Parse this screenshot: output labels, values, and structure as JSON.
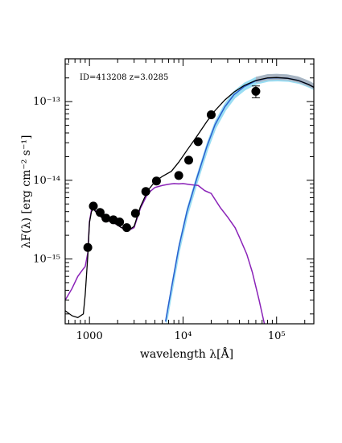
{
  "chart_data": {
    "type": "scatter",
    "title": "",
    "annotation": "ID=413208 z=3.0285",
    "xlabel": "wavelength λ[Å]",
    "ylabel": "λF(λ) [erg cm⁻² s⁻¹]",
    "x_scale": "log",
    "y_scale": "log",
    "xlim": [
      550,
      250000
    ],
    "ylim": [
      1.5e-16,
      3.5e-13
    ],
    "grid": false,
    "legend": "none",
    "x_ticks": [
      {
        "value": 1000,
        "label": "1000"
      },
      {
        "value": 10000,
        "label": "10⁴"
      },
      {
        "value": 100000,
        "label": "10⁵"
      }
    ],
    "y_ticks": [
      {
        "value": 1e-15,
        "label": "10⁻¹⁵"
      },
      {
        "value": 1e-14,
        "label": "10⁻¹⁴"
      },
      {
        "value": 1e-13,
        "label": "10⁻¹³"
      }
    ],
    "colors": {
      "points": "#000000",
      "total_model": "#000000",
      "stellar_model": "#8a22b8",
      "dust_model": "#2a5fd0",
      "dust_band": "#7fd4f0",
      "dust_band_far": "#a8b4c2"
    },
    "points": [
      {
        "x": 960,
        "y": 1.4e-15
      },
      {
        "x": 1100,
        "y": 4.7e-15
      },
      {
        "x": 1300,
        "y": 3.9e-15
      },
      {
        "x": 1500,
        "y": 3.3e-15
      },
      {
        "x": 1800,
        "y": 3.15e-15
      },
      {
        "x": 2100,
        "y": 2.95e-15
      },
      {
        "x": 2500,
        "y": 2.5e-15
      },
      {
        "x": 3100,
        "y": 3.8e-15
      },
      {
        "x": 4000,
        "y": 7.2e-15
      },
      {
        "x": 5200,
        "y": 9.8e-15
      },
      {
        "x": 9000,
        "y": 1.15e-14
      },
      {
        "x": 11500,
        "y": 1.8e-14
      },
      {
        "x": 14500,
        "y": 3.1e-14
      },
      {
        "x": 20000,
        "y": 6.8e-14
      },
      {
        "x": 60000,
        "y": 1.35e-13,
        "err_low": 1.12e-13,
        "err_high": 1.58e-13
      }
    ],
    "series": [
      {
        "key": "total",
        "x": [
          550,
          650,
          750,
          860,
          900,
          960,
          1000,
          1050,
          1100,
          1200,
          1400,
          1600,
          1900,
          2200,
          2600,
          3000,
          3500,
          4200,
          5000,
          6000,
          7500,
          9000,
          11000,
          14000,
          18000,
          22000,
          28000,
          35000,
          45000,
          60000,
          80000,
          100000,
          130000,
          170000,
          220000,
          250000
        ],
        "y": [
          2.2e-16,
          1.9e-16,
          1.8e-16,
          2e-16,
          3.5e-16,
          1.1e-15,
          2.9e-15,
          4e-15,
          4.35e-15,
          3.8e-15,
          3.25e-15,
          3.05e-15,
          2.8e-15,
          2.5e-15,
          2.3e-15,
          2.6e-15,
          4.6e-15,
          7.4e-15,
          9.6e-15,
          1.12e-14,
          1.3e-14,
          1.7e-14,
          2.4e-14,
          3.6e-14,
          5.6e-14,
          7.7e-14,
          1.05e-13,
          1.32e-13,
          1.6e-13,
          1.86e-13,
          2e-13,
          2.02e-13,
          1.98e-13,
          1.86e-13,
          1.65e-13,
          1.52e-13
        ]
      },
      {
        "key": "stellar",
        "x": [
          550,
          650,
          750,
          860,
          900,
          960,
          1000,
          1050,
          1100,
          1200,
          1400,
          1600,
          1900,
          2200,
          2600,
          3000,
          3500,
          4200,
          5000,
          6000,
          7000,
          8000,
          9000,
          10000,
          12000,
          14500,
          17000,
          20000,
          25000,
          30000,
          36000,
          40000,
          48000,
          55000,
          65000,
          75000
        ],
        "y": [
          3e-16,
          4.2e-16,
          6e-16,
          7.5e-16,
          8e-16,
          1.2e-15,
          3e-15,
          4.2e-15,
          4.5e-15,
          3.85e-15,
          3.25e-15,
          3.05e-15,
          2.8e-15,
          2.5e-15,
          2.3e-15,
          2.5e-15,
          4.4e-15,
          6.8e-15,
          8.1e-15,
          8.6e-15,
          8.9e-15,
          9.1e-15,
          9e-15,
          9.1e-15,
          8.8e-15,
          8.6e-15,
          7.4e-15,
          6.8e-15,
          4.5e-15,
          3.4e-15,
          2.5e-15,
          1.9e-15,
          1.15e-15,
          6.8e-16,
          3e-16,
          1.4e-16
        ]
      },
      {
        "key": "dust",
        "x": [
          6500,
          7500,
          9000,
          11000,
          14000,
          18000,
          22000,
          28000,
          35000,
          45000,
          60000,
          80000,
          100000,
          130000,
          170000,
          220000,
          250000
        ],
        "y": [
          1.6e-16,
          4.2e-16,
          1.4e-15,
          4e-15,
          1.05e-14,
          2.7e-14,
          5.1e-14,
          8.6e-14,
          1.22e-13,
          1.55e-13,
          1.84e-13,
          1.99e-13,
          2.01e-13,
          1.98e-13,
          1.86e-13,
          1.65e-13,
          1.52e-13
        ]
      }
    ]
  }
}
